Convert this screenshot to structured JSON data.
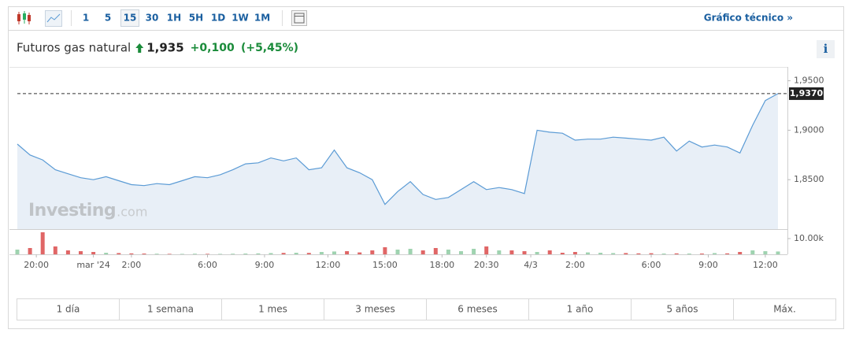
{
  "toolbar": {
    "intervals": [
      "1",
      "5",
      "15",
      "30",
      "1H",
      "5H",
      "1D",
      "1W",
      "1M"
    ],
    "selected_interval": 2,
    "link": "Gráfico técnico »"
  },
  "header": {
    "name": "Futuros gas natural",
    "price": "1,935",
    "change": "+0,100",
    "change_pct": "(+5,45%)",
    "info": "i"
  },
  "watermark": {
    "brand": "Investing",
    "suffix": ".com"
  },
  "ranges": [
    "1 día",
    "1 semana",
    "1 mes",
    "3 meses",
    "6 meses",
    "1 año",
    "5 años",
    "Máx."
  ],
  "chart_data": {
    "type": "line",
    "x": [
      0,
      2,
      4,
      6,
      8,
      10,
      12,
      14,
      16,
      18,
      20,
      22,
      24,
      26,
      28,
      30,
      32,
      34,
      36,
      38,
      40,
      42,
      44,
      46,
      48,
      50,
      52,
      54,
      56,
      58,
      60,
      62,
      64,
      66,
      68,
      70,
      72,
      74,
      76,
      78,
      80,
      82,
      84,
      86,
      88,
      90,
      92,
      94,
      96,
      98,
      100,
      102,
      104,
      106,
      108,
      110,
      112,
      114,
      116,
      118,
      120
    ],
    "series": [
      {
        "color": "#5b9bd5",
        "values": [
          1.886,
          1.875,
          1.87,
          1.86,
          1.856,
          1.852,
          1.85,
          1.853,
          1.849,
          1.845,
          1.844,
          1.846,
          1.845,
          1.849,
          1.853,
          1.852,
          1.855,
          1.86,
          1.866,
          1.867,
          1.872,
          1.869,
          1.872,
          1.86,
          1.862,
          1.88,
          1.862,
          1.857,
          1.85,
          1.825,
          1.838,
          1.848,
          1.835,
          1.83,
          1.832,
          1.84,
          1.848,
          1.84,
          1.842,
          1.84,
          1.836,
          1.9,
          1.898,
          1.897,
          1.89,
          1.891,
          1.891,
          1.893,
          1.892,
          1.891,
          1.89,
          1.893,
          1.879,
          1.889,
          1.883,
          1.885,
          1.883,
          1.877,
          1.905,
          1.93,
          1.937
        ]
      },
      {
        "type": "bar",
        "axis": "y2",
        "color_up": "#9fd3b0",
        "color_down": "#e06666",
        "values": [
          3000,
          4000,
          14000,
          5000,
          2500,
          2000,
          1500,
          1000,
          800,
          600,
          500,
          400,
          300,
          300,
          400,
          300,
          300,
          400,
          500,
          600,
          800,
          900,
          1000,
          900,
          1500,
          1800,
          2000,
          1200,
          2500,
          4500,
          3000,
          3500,
          2500,
          4000,
          3000,
          2000,
          3500,
          5000,
          2500,
          2500,
          2000,
          1500,
          2500,
          1000,
          1500,
          1200,
          1000,
          800,
          800,
          600,
          700,
          500,
          600,
          500,
          500,
          800,
          600,
          1500,
          2500,
          2000,
          1800
        ]
      }
    ],
    "xlim": [
      0,
      120
    ],
    "xticks": [
      {
        "value": 3,
        "label": "20:00"
      },
      {
        "value": 12,
        "label": "mar '24"
      },
      {
        "value": 18,
        "label": "2:00"
      },
      {
        "value": 30,
        "label": "6:00"
      },
      {
        "value": 39,
        "label": "9:00"
      },
      {
        "value": 49,
        "label": "12:00"
      },
      {
        "value": 58,
        "label": "15:00"
      },
      {
        "value": 67,
        "label": "18:00"
      },
      {
        "value": 74,
        "label": "20:30"
      },
      {
        "value": 81,
        "label": "4/3"
      },
      {
        "value": 88,
        "label": "2:00"
      },
      {
        "value": 100,
        "label": "6:00"
      },
      {
        "value": 109,
        "label": "9:00"
      },
      {
        "value": 118,
        "label": "12:00"
      }
    ],
    "ylim": [
      1.8,
      1.964
    ],
    "yticks": [
      {
        "value": 1.85,
        "label": "1,8500"
      },
      {
        "value": 1.9,
        "label": "1,9000"
      },
      {
        "value": 1.95,
        "label": "1,9500"
      }
    ],
    "y2lim": [
      0,
      16000
    ],
    "y2ticks": [
      {
        "value": 10000,
        "label": "10.00k"
      }
    ],
    "last": {
      "value": 1.937,
      "label": "1,9370"
    }
  }
}
